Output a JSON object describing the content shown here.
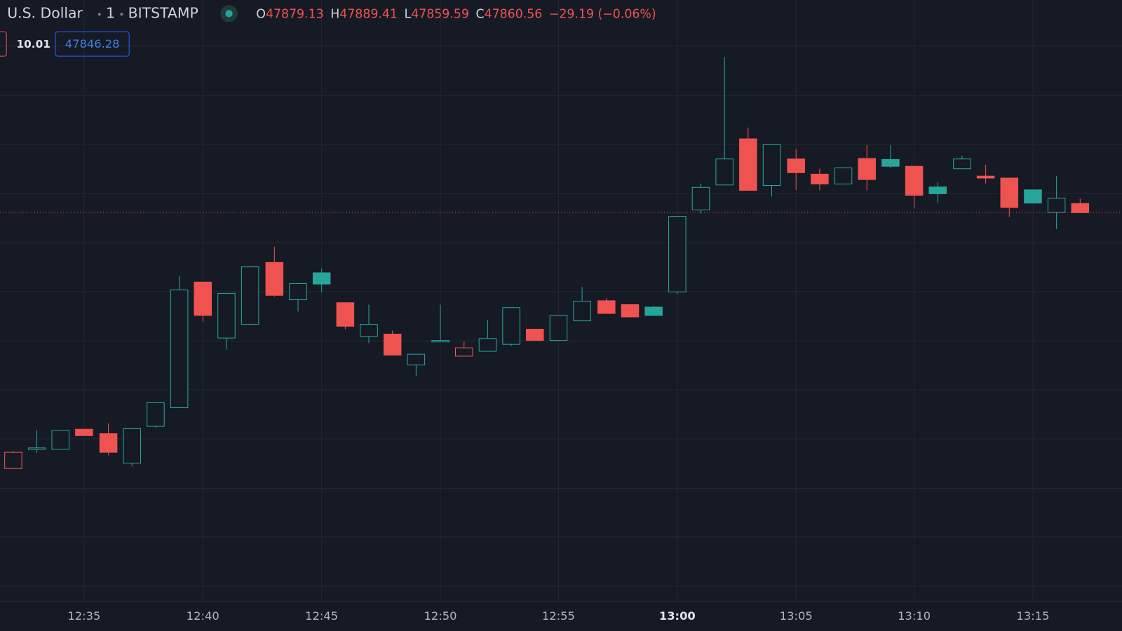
{
  "header": {
    "symbol": "U.S. Dollar",
    "interval": "1",
    "exchange": "BITSTAMP",
    "o_label": "O",
    "h_label": "H",
    "l_label": "L",
    "c_label": "C",
    "change": "−29.19 (−0.06%)"
  },
  "indicators": [
    "10.01",
    "47846.28"
  ],
  "chart_data": {
    "type": "candlestick",
    "categories": [
      null,
      null,
      null,
      "12:35",
      null,
      null,
      null,
      null,
      "12:40",
      null,
      null,
      null,
      null,
      "12:45",
      null,
      null,
      null,
      null,
      "12:50",
      null,
      null,
      null,
      null,
      "12:55",
      null,
      null,
      null,
      null,
      "13:00",
      null,
      null,
      null,
      null,
      "13:05",
      null,
      null,
      null,
      null,
      "13:10",
      null,
      null,
      null,
      null,
      "13:15",
      null,
      null
    ],
    "open": [
      47339,
      47378,
      47378,
      47419,
      47410,
      47350,
      47425,
      47463,
      47719,
      47605,
      47633,
      47759,
      47683,
      47738,
      47677,
      47608,
      47613,
      47550,
      47597,
      47568,
      47578,
      47592,
      47623,
      47600,
      47640,
      47681,
      47673,
      47668,
      47699,
      47866,
      47917,
      48011,
      47916,
      47970,
      47939,
      47919,
      47971,
      47969,
      47955,
      47913,
      47950,
      47935,
      47931,
      47907,
      47861,
      47879.13
    ],
    "high": [
      47375,
      47417,
      47417,
      47419,
      47431,
      47420,
      47473,
      47732,
      47719,
      47696,
      47750,
      47791,
      47716,
      47747,
      47677,
      47673,
      47620,
      47572,
      47673,
      47598,
      47642,
      47667,
      47623,
      47651,
      47709,
      47686,
      47673,
      47671,
      47853,
      47920,
      48178,
      48034,
      47999,
      47990,
      47950,
      47952,
      47998,
      47998,
      47955,
      47922,
      47977,
      47958,
      47931,
      47907,
      47935,
      47889.41
    ],
    "low": [
      47339,
      47371,
      47378,
      47406,
      47366,
      47343,
      47422,
      47463,
      47638,
      47581,
      47633,
      47689,
      47659,
      47699,
      47623,
      47595,
      47570,
      47527,
      47597,
      47568,
      47578,
      47589,
      47600,
      47600,
      47640,
      47655,
      47648,
      47651,
      47694,
      47859,
      47917,
      47906,
      47893,
      47907,
      47906,
      47919,
      47906,
      47951,
      47869,
      47881,
      47950,
      47920,
      47852,
      47880,
      47827,
      47859.59
    ],
    "close": [
      47372,
      47381,
      47417,
      47406,
      47372,
      47420,
      47473,
      47703,
      47651,
      47696,
      47750,
      47692,
      47716,
      47715,
      47629,
      47633,
      47570,
      47572,
      47600,
      47585,
      47604,
      47667,
      47600,
      47651,
      47680,
      47655,
      47648,
      47651,
      47853,
      47912,
      47970,
      47906,
      47999,
      47942,
      47919,
      47952,
      47928,
      47955,
      47896,
      47899,
      47970,
      47931,
      47871,
      47880,
      47890,
      47860.56
    ],
    "colors": [
      "#ef5350",
      "#26a69a",
      "#26a69a",
      "#ef5350",
      "#ef5350",
      "#26a69a",
      "#26a69a",
      "#26a69a",
      "#ef5350",
      "#26a69a",
      "#26a69a",
      "#ef5350",
      "#26a69a",
      "#26a69a",
      "#ef5350",
      "#26a69a",
      "#ef5350",
      "#26a69a",
      "#26a69a",
      "#ef5350",
      "#26a69a",
      "#26a69a",
      "#ef5350",
      "#26a69a",
      "#26a69a",
      "#ef5350",
      "#ef5350",
      "#26a69a",
      "#26a69a",
      "#26a69a",
      "#26a69a",
      "#ef5350",
      "#26a69a",
      "#ef5350",
      "#ef5350",
      "#26a69a",
      "#ef5350",
      "#26a69a",
      "#ef5350",
      "#26a69a",
      "#26a69a",
      "#ef5350",
      "#ef5350",
      "#26a69a",
      "#26a69a",
      "#ef5350"
    ],
    "ylim": [
      47069,
      48294
    ],
    "yticks": [
      47100,
      47200,
      47300,
      47400,
      47500,
      47600,
      47700,
      47800,
      47900,
      48000,
      48100,
      48200
    ],
    "grid": true
  }
}
